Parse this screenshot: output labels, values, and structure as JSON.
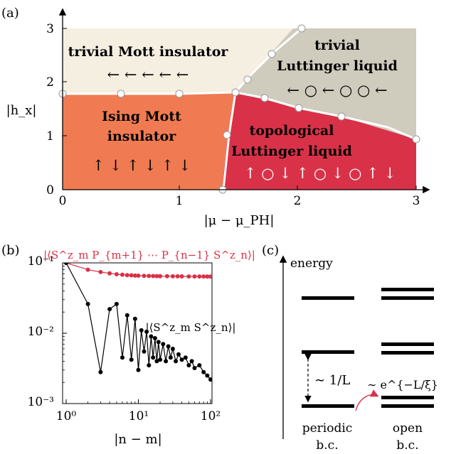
{
  "panel_a": {
    "label": "(a)",
    "xlabel": "|μ − μ_PH|",
    "ylabel": "|h_x|",
    "x_ticks": [
      "0",
      "1",
      "2",
      "3"
    ],
    "y_ticks": [
      "0",
      "1",
      "2",
      "3"
    ],
    "phases": {
      "trivial_mott": {
        "line1": "trivial Mott insulator",
        "arrows": "← ← ← ← ←",
        "color": "#f5efe2"
      },
      "trivial_ll": {
        "line1": "trivial",
        "line2": "Luttinger liquid",
        "arrows": "← ○ ← ○ ○ ←",
        "color": "#cfcbbd"
      },
      "ising_mott": {
        "line1": "Ising Mott",
        "line2": "insulator",
        "arrows": "↑ ↓ ↑ ↓ ↑ ↓",
        "color": "#f07b52"
      },
      "topo_ll": {
        "line1": "topological",
        "line2": "Luttinger liquid",
        "arrows": "↑ ○ ↓ ↑ ○ ↓ ○ ↑ ↓",
        "color": "#d93248"
      }
    }
  },
  "panel_b": {
    "label": "(b)",
    "xlabel": "|n − m|",
    "curve_label_red": "|⟨S^z_m P_{m+1} ⋯ P_{n−1} S^z_n⟩|",
    "curve_label_black": "|⟨S^z_m S^z_n⟩|",
    "x_ticks": [
      "10⁰",
      "10¹",
      "10²"
    ],
    "y_ticks": [
      "10⁻¹",
      "10⁻²",
      "10⁻³"
    ]
  },
  "panel_c": {
    "label": "(c)",
    "energy_label": "energy",
    "gap_label": "∼ 1/L",
    "split_label": "∼ e^{−L/ξ}",
    "col1_line1": "periodic",
    "col1_line2": "b.c.",
    "col2_line1": "open",
    "col2_line2": "b.c."
  },
  "chart_data": [
    {
      "type": "area",
      "panel": "(a)",
      "xlabel": "|μ − μ_PH|",
      "ylabel": "|h_x|",
      "xlim": [
        0,
        3
      ],
      "ylim": [
        0,
        3
      ],
      "boundaries": [
        {
          "name": "mott transition",
          "x": [
            0,
            0.5,
            1.0,
            1.43
          ],
          "y": [
            1.78,
            1.78,
            1.78,
            1.8
          ]
        },
        {
          "name": "ising to topological",
          "x": [
            1.43,
            1.37,
            1.34
          ],
          "y": [
            1.8,
            1.0,
            0.0
          ]
        },
        {
          "name": "trivial mott to trivial LL",
          "x": [
            1.43,
            1.55,
            1.75,
            2.0
          ],
          "y": [
            1.8,
            2.05,
            2.5,
            3.0
          ]
        },
        {
          "name": "topological to trivial LL",
          "x": [
            1.43,
            1.7,
            2.0,
            2.5,
            3.0
          ],
          "y": [
            1.8,
            1.63,
            1.5,
            1.25,
            0.9
          ]
        }
      ],
      "grid": false
    },
    {
      "type": "line",
      "panel": "(b)",
      "xlabel": "|n − m|",
      "xscale": "log",
      "yscale": "log",
      "xlim": [
        1,
        100
      ],
      "ylim": [
        0.001,
        0.1
      ],
      "series": [
        {
          "name": "|⟨S^z_m P_{m+1} ⋯ P_{n−1} S^z_n⟩|",
          "color": "#d93248",
          "x": [
            1,
            2,
            3,
            4,
            5,
            6,
            7,
            8,
            9,
            10,
            12,
            14,
            16,
            18,
            20,
            25,
            30,
            35,
            40,
            50,
            60,
            70,
            80,
            90,
            100
          ],
          "y": [
            0.1,
            0.08,
            0.074,
            0.071,
            0.069,
            0.068,
            0.067,
            0.0665,
            0.066,
            0.0658,
            0.0655,
            0.0652,
            0.065,
            0.0649,
            0.0648,
            0.0646,
            0.0645,
            0.0644,
            0.0643,
            0.0642,
            0.0642,
            0.0641,
            0.0641,
            0.064,
            0.064
          ]
        },
        {
          "name": "|⟨S^z_m S^z_n⟩|",
          "color": "#000000",
          "x": [
            1,
            2,
            3,
            4,
            5,
            6,
            7,
            8,
            9,
            10,
            11,
            12,
            13,
            14,
            15,
            16,
            17,
            18,
            19,
            20,
            22,
            24,
            26,
            28,
            30,
            33,
            36,
            40,
            45,
            50,
            55,
            60,
            70,
            80,
            90,
            100
          ],
          "y": [
            0.1,
            0.026,
            0.0028,
            0.022,
            0.026,
            0.0045,
            0.018,
            0.0042,
            0.016,
            0.003,
            0.011,
            0.0055,
            0.0105,
            0.0035,
            0.009,
            0.0045,
            0.0085,
            0.004,
            0.0075,
            0.0042,
            0.007,
            0.004,
            0.0065,
            0.0045,
            0.006,
            0.004,
            0.005,
            0.0042,
            0.0045,
            0.0035,
            0.004,
            0.0032,
            0.0035,
            0.0028,
            0.0025,
            0.0022
          ]
        }
      ]
    }
  ]
}
